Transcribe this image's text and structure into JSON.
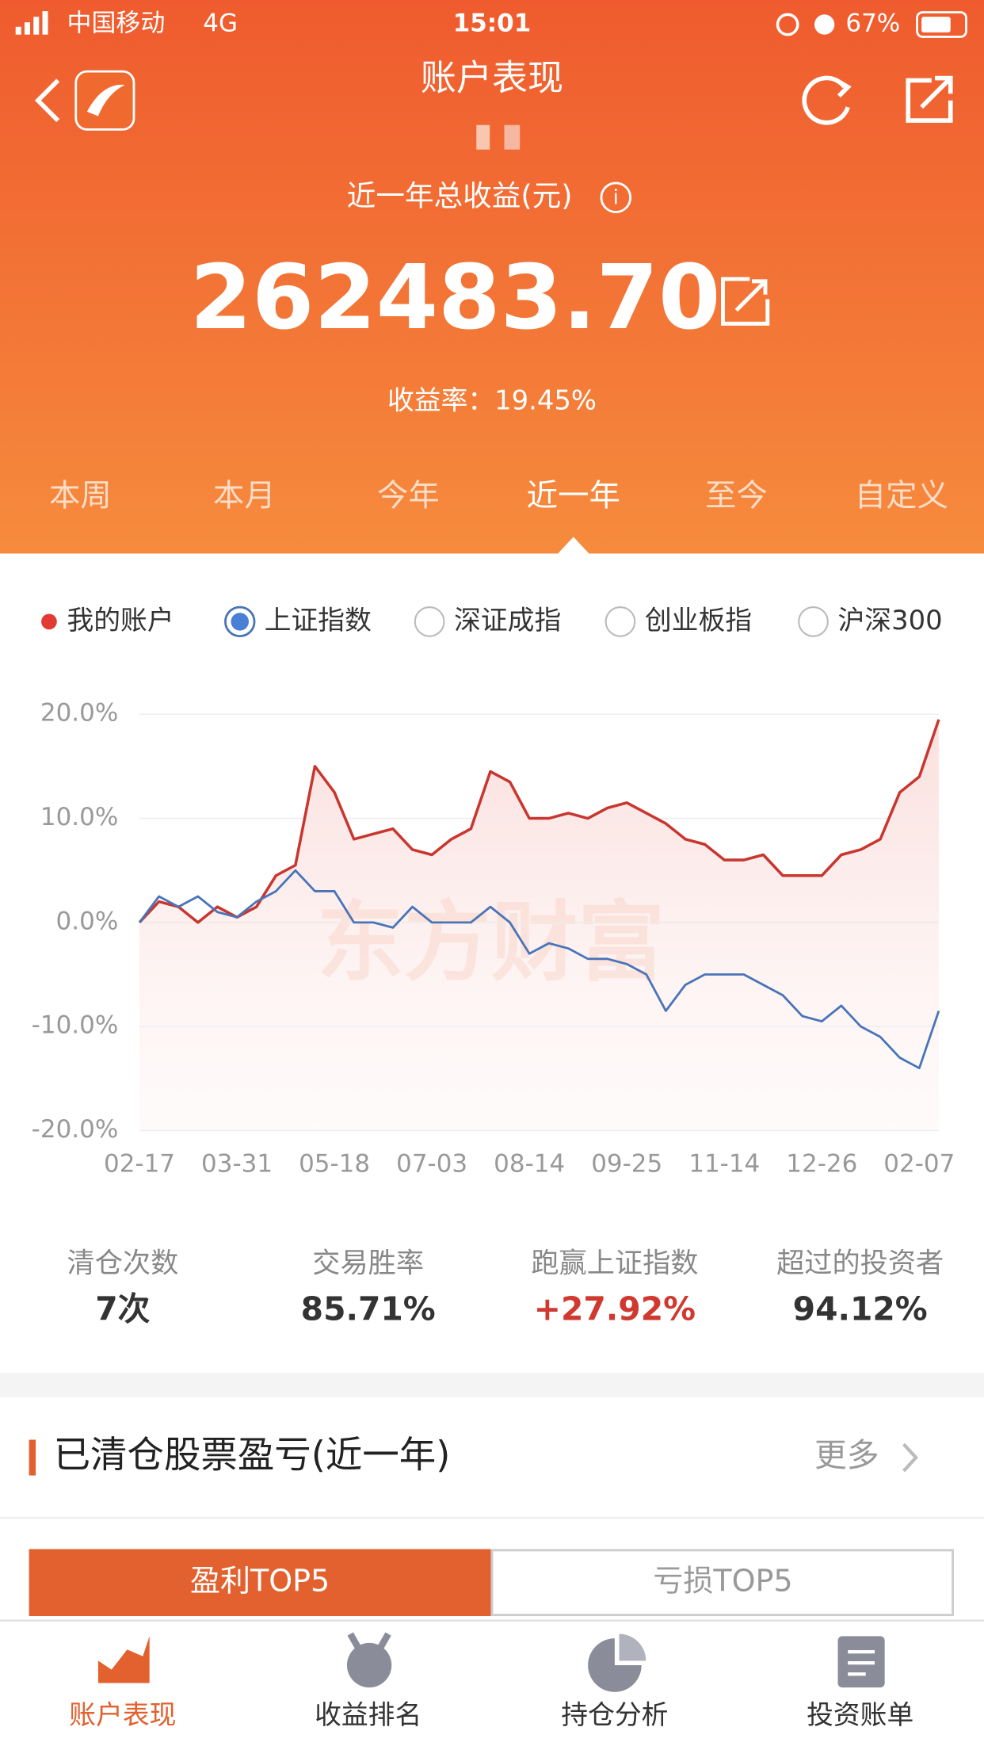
{
  "status_bar": {
    "carrier": "中国移动",
    "network": "4G",
    "time": "15:01",
    "battery": "67%"
  },
  "header": {
    "title": "账户表现",
    "subtitle": "近一年总收益(元)",
    "total": "262483.70",
    "rate": "收益率：19.45%"
  },
  "tabs": [
    "本周",
    "本月",
    "今年",
    "近一年",
    "至今",
    "自定义"
  ],
  "legend_options": [
    "深证成指",
    "创业板指",
    "沪深300"
  ],
  "chart_data": {
    "type": "line",
    "watermark": "东方财富",
    "categories": [
      "02-17",
      null,
      null,
      null,
      null,
      "03-31",
      null,
      null,
      null,
      null,
      "05-18",
      null,
      null,
      null,
      null,
      "07-03",
      null,
      null,
      null,
      null,
      "08-14",
      null,
      null,
      null,
      null,
      "09-25",
      null,
      null,
      null,
      null,
      "11-14",
      null,
      null,
      null,
      null,
      "12-26",
      null,
      null,
      null,
      null,
      "02-07",
      null
    ],
    "series": [
      {
        "name": "我的账户",
        "color": "#c8362f",
        "values": [
          0,
          2,
          1.5,
          0,
          1.5,
          0.5,
          1.5,
          4.5,
          5.5,
          15,
          12.5,
          8,
          8.5,
          9,
          7,
          6.5,
          8,
          9,
          14.5,
          13.5,
          10,
          10,
          10.5,
          10,
          11,
          11.5,
          10.5,
          9.5,
          8,
          7.5,
          6,
          6,
          6.5,
          4.5,
          4.5,
          4.5,
          6.5,
          7,
          8,
          12.5,
          14,
          19.5
        ]
      },
      {
        "name": "上证指数",
        "color": "#4a74b8",
        "values": [
          0,
          2.5,
          1.5,
          2.5,
          1,
          0.5,
          2,
          3,
          5,
          3,
          3,
          0,
          0,
          -0.5,
          1.5,
          0,
          0,
          0,
          1.5,
          0,
          -3,
          -2,
          -2.5,
          -3.5,
          -3.5,
          -4,
          -5,
          -8.5,
          -6,
          -5,
          -5,
          -5,
          -6,
          -7,
          -9,
          -9.5,
          -8,
          -10,
          -11,
          -13,
          -14,
          -8.5
        ]
      }
    ],
    "ylim": [
      -20,
      20
    ],
    "yticks": [
      {
        "value": 20,
        "label": "20.0%"
      },
      {
        "value": 10,
        "label": "10.0%"
      },
      {
        "value": 0,
        "label": "0.0%"
      },
      {
        "value": -10,
        "label": "-10.0%"
      },
      {
        "value": -20,
        "label": "-20.0%"
      }
    ],
    "grid": true
  },
  "stats": [
    {
      "label": "清仓次数",
      "value": "7次"
    },
    {
      "label": "交易胜率",
      "value": "85.71%"
    },
    {
      "label": "跑赢上证指数",
      "value": "+27.92%"
    },
    {
      "label": "超过的投资者",
      "value": "94.12%"
    }
  ],
  "section": {
    "title": "已清仓股票盈亏(近一年)",
    "more": "更多"
  },
  "buttons": [
    "盈利TOP5",
    "亏损TOP5"
  ],
  "nav": [
    "账户表现",
    "收益排名",
    "持仓分析",
    "投资账单"
  ]
}
